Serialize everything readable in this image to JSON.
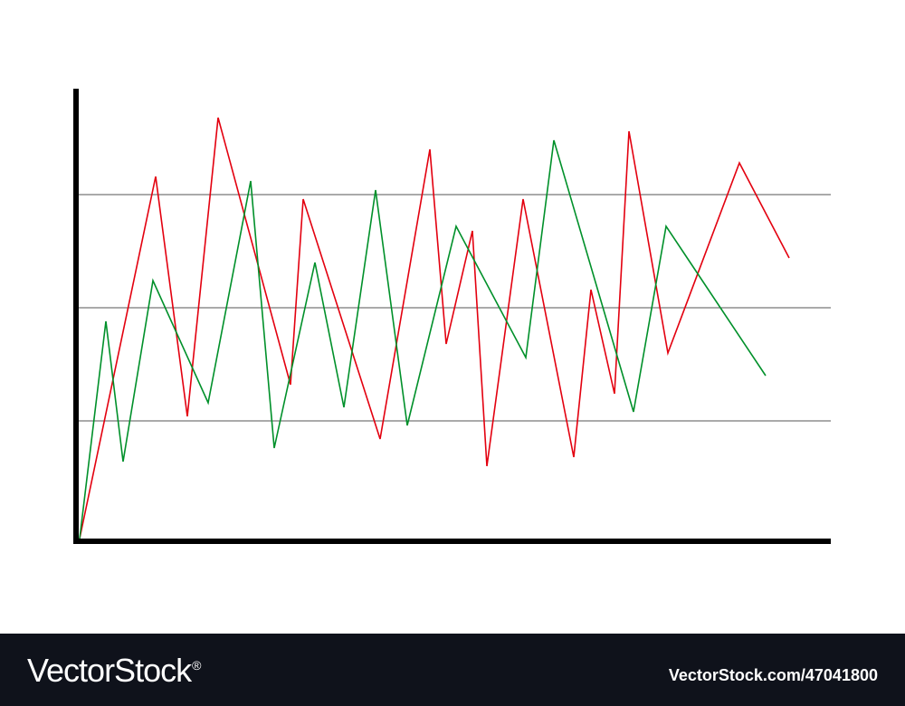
{
  "chart_data": {
    "type": "line",
    "title": "",
    "xlabel": "",
    "ylabel": "",
    "xlim": [
      0,
      830
    ],
    "ylim": [
      0,
      100
    ],
    "grid": "horizontal",
    "gridlines": [
      26,
      51,
      76
    ],
    "series": [
      {
        "color": "#e3000f",
        "points": [
          [
            0,
            0
          ],
          [
            84,
            80
          ],
          [
            119,
            27
          ],
          [
            153,
            93
          ],
          [
            233,
            34
          ],
          [
            247,
            75
          ],
          [
            332,
            22
          ],
          [
            387,
            86
          ],
          [
            405,
            43
          ],
          [
            434,
            68
          ],
          [
            450,
            16
          ],
          [
            490,
            75
          ],
          [
            546,
            18
          ],
          [
            565,
            55
          ],
          [
            591,
            32
          ],
          [
            607,
            90
          ],
          [
            650,
            41
          ],
          [
            729,
            83
          ],
          [
            784,
            62
          ]
        ]
      },
      {
        "color": "#00902a",
        "points": [
          [
            0,
            0
          ],
          [
            29,
            48
          ],
          [
            48,
            17
          ],
          [
            81,
            57
          ],
          [
            142,
            30
          ],
          [
            189,
            79
          ],
          [
            215,
            20
          ],
          [
            260,
            61
          ],
          [
            292,
            29
          ],
          [
            327,
            77
          ],
          [
            362,
            25
          ],
          [
            416,
            69
          ],
          [
            493,
            40
          ],
          [
            524,
            88
          ],
          [
            612,
            28
          ],
          [
            648,
            69
          ],
          [
            758,
            36
          ]
        ]
      }
    ]
  },
  "footer": {
    "brand": "VectorStock",
    "brand_mark": "®",
    "image_id": "VectorStock.com/47041800"
  }
}
